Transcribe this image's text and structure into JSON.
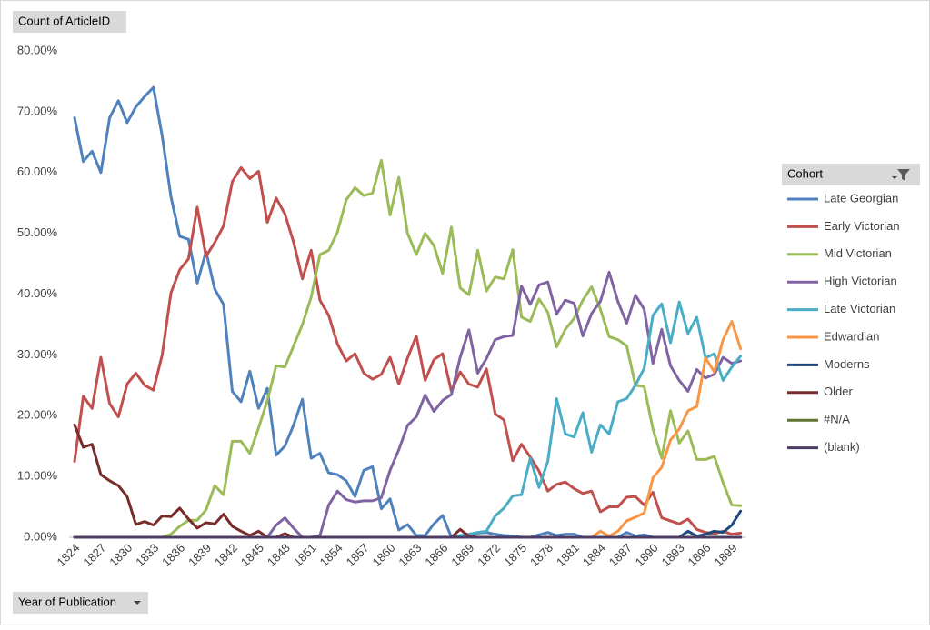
{
  "chart_data": {
    "type": "line",
    "value_field": "Count of ArticleID",
    "axis_field": "Year of Publication",
    "legend_title": "Cohort",
    "legend_position": "right",
    "grid": false,
    "categories": [
      "1824",
      null,
      null,
      "1827",
      null,
      null,
      "1830",
      null,
      null,
      "1833",
      null,
      null,
      "1836",
      null,
      null,
      "1839",
      null,
      null,
      "1842",
      null,
      null,
      "1845",
      null,
      null,
      "1848",
      null,
      null,
      "1851",
      null,
      null,
      "1854",
      null,
      null,
      "1857",
      null,
      null,
      "1860",
      null,
      null,
      "1863",
      null,
      null,
      "1866",
      null,
      null,
      "1869",
      null,
      null,
      "1872",
      null,
      null,
      "1875",
      null,
      null,
      "1878",
      null,
      null,
      "1881",
      null,
      null,
      "1884",
      null,
      null,
      "1887",
      null,
      null,
      "1890",
      null,
      null,
      "1893",
      null,
      null,
      "1896",
      null,
      null,
      "1899",
      null
    ],
    "ylim": [
      0,
      80
    ],
    "yticks": [
      {
        "value": 0,
        "label": "0.00%"
      },
      {
        "value": 10,
        "label": "10.00%"
      },
      {
        "value": 20,
        "label": "20.00%"
      },
      {
        "value": 30,
        "label": "30.00%"
      },
      {
        "value": 40,
        "label": "40.00%"
      },
      {
        "value": 50,
        "label": "50.00%"
      },
      {
        "value": 60,
        "label": "60.00%"
      },
      {
        "value": 70,
        "label": "70.00%"
      },
      {
        "value": 80,
        "label": "80.00%"
      }
    ],
    "series": [
      {
        "name": "Late Georgian",
        "color": "#4f81bd",
        "values": [
          69,
          61.8,
          63.5,
          60,
          69,
          71.8,
          68.2,
          70.8,
          72.5,
          74,
          66,
          56,
          49.5,
          49,
          41.8,
          47,
          40.8,
          38.3,
          24,
          22.3,
          27.3,
          21.2,
          24.5,
          13.5,
          15,
          18.5,
          22.7,
          13,
          13.8,
          10.6,
          10.3,
          9.3,
          6.7,
          11,
          11.6,
          4.7,
          6.3,
          1.2,
          2.1,
          0.3,
          0.3,
          2.2,
          3.6,
          0,
          0,
          0.5,
          0.7,
          0.8,
          0.5,
          0.3,
          0.2,
          0,
          0,
          0.4,
          0.8,
          0.3,
          0.5,
          0.5,
          0,
          0,
          0,
          0,
          0,
          0.8,
          0.2,
          0.4,
          0,
          0,
          0,
          0,
          0,
          0,
          0,
          0,
          0,
          0,
          0
        ]
      },
      {
        "name": "Early Victorian",
        "color": "#c0504d",
        "values": [
          12.5,
          23.2,
          21.2,
          29.6,
          22,
          19.8,
          25.2,
          27,
          25,
          24.2,
          30,
          40.2,
          44,
          45.8,
          54.3,
          46.2,
          48.5,
          51.2,
          58.5,
          60.8,
          59,
          60.2,
          51.8,
          55.8,
          53.2,
          48.5,
          42.5,
          47.2,
          39,
          36.5,
          31.8,
          29,
          30.2,
          27,
          26,
          26.8,
          29.6,
          25.2,
          29.5,
          33.1,
          25.8,
          29.2,
          30.2,
          24,
          27.2,
          25.2,
          24.7,
          27.7,
          20.3,
          19.3,
          12.6,
          15.3,
          13.2,
          10.9,
          7.6,
          8.7,
          9.1,
          8,
          7.2,
          7.6,
          4.2,
          5,
          5,
          6.6,
          6.7,
          5.3,
          7.4,
          3.2,
          2.7,
          2.2,
          3,
          1.3,
          0.8,
          0.6,
          1,
          0.5,
          0.7
        ]
      },
      {
        "name": "Mid Victorian",
        "color": "#9bbb59",
        "values": [
          0,
          0,
          0,
          0,
          0,
          0,
          0,
          0,
          0,
          0,
          0,
          0.5,
          1.8,
          2.8,
          2.8,
          4.5,
          8.5,
          7,
          15.8,
          15.8,
          13.8,
          18,
          22.5,
          28.2,
          28,
          31.5,
          35,
          39.5,
          46.5,
          47.2,
          50.2,
          55.5,
          57.5,
          56.2,
          56.6,
          62,
          53,
          59.2,
          50,
          46.5,
          50,
          48,
          43.4,
          51,
          41,
          39.9,
          47.2,
          40.5,
          42.8,
          42.5,
          47.3,
          36.2,
          35.5,
          39.2,
          37,
          31.3,
          34.2,
          36,
          39,
          41.2,
          37.5,
          33,
          32.5,
          31.5,
          25,
          24.8,
          17.8,
          13,
          20.8,
          15.5,
          17.5,
          12.8,
          12.8,
          13.3,
          9,
          5.3,
          5.2
        ]
      },
      {
        "name": "High Victorian",
        "color": "#8064a2",
        "values": [
          0,
          0,
          0,
          0,
          0,
          0,
          0,
          0,
          0,
          0,
          0,
          0,
          0,
          0,
          0,
          0,
          0,
          0,
          0,
          0,
          0,
          0,
          0,
          2,
          3.2,
          1.5,
          0,
          0,
          0.3,
          5.3,
          7.6,
          6.2,
          5.8,
          6,
          6,
          6.5,
          11,
          14.4,
          18.4,
          19.8,
          23.4,
          20.7,
          22.5,
          23.5,
          29.6,
          34.1,
          27,
          29.4,
          32.5,
          33,
          33.2,
          41.3,
          38.3,
          41.5,
          42,
          36.7,
          39,
          38.5,
          33.1,
          36.8,
          38.8,
          43.6,
          38.8,
          35.2,
          39.8,
          37.5,
          28.6,
          34.2,
          28.2,
          25.8,
          24,
          27.6,
          26.2,
          26.8,
          29.6,
          28.6,
          29
        ]
      },
      {
        "name": "Late Victorian",
        "color": "#4bacc6",
        "values": [
          0,
          0,
          0,
          0,
          0,
          0,
          0,
          0,
          0,
          0,
          0,
          0,
          0,
          0,
          0,
          0,
          0,
          0,
          0,
          0,
          0,
          0,
          0,
          0,
          0,
          0,
          0,
          0,
          0,
          0,
          0,
          0,
          0,
          0,
          0,
          0,
          0,
          0,
          0,
          0,
          0,
          0,
          0,
          0,
          0.3,
          0.5,
          0.8,
          1,
          3.5,
          4.8,
          6.8,
          7,
          13,
          8.2,
          12.5,
          22.8,
          17,
          16.5,
          20.5,
          14,
          18.5,
          17,
          22.3,
          22.8,
          25,
          27.8,
          36.5,
          38.4,
          32,
          38.7,
          33.5,
          36.2,
          29.5,
          30.2,
          25.8,
          28,
          29.8
        ]
      },
      {
        "name": "Edwardian",
        "color": "#f79646",
        "values": [
          0,
          0,
          0,
          0,
          0,
          0,
          0,
          0,
          0,
          0,
          0,
          0,
          0,
          0,
          0,
          0,
          0,
          0,
          0,
          0,
          0,
          0,
          0,
          0,
          0,
          0,
          0,
          0,
          0,
          0,
          0,
          0,
          0,
          0,
          0,
          0,
          0,
          0,
          0,
          0,
          0,
          0,
          0,
          0,
          0,
          0,
          0,
          0,
          0,
          0,
          0,
          0,
          0,
          0,
          0,
          0,
          0,
          0,
          0,
          0,
          1,
          0.2,
          1,
          2.7,
          3.3,
          4,
          9.8,
          11.5,
          16,
          17.8,
          20.8,
          21.5,
          29.5,
          27.2,
          32.5,
          35.5,
          31
        ]
      },
      {
        "name": "Moderns",
        "color": "#1f497d",
        "values": [
          0,
          0,
          0,
          0,
          0,
          0,
          0,
          0,
          0,
          0,
          0,
          0,
          0,
          0,
          0,
          0,
          0,
          0,
          0,
          0,
          0,
          0,
          0,
          0,
          0,
          0,
          0,
          0,
          0,
          0,
          0,
          0,
          0,
          0,
          0,
          0,
          0,
          0,
          0,
          0,
          0,
          0,
          0,
          0,
          0,
          0,
          0,
          0,
          0,
          0,
          0,
          0,
          0,
          0,
          0,
          0,
          0,
          0,
          0,
          0,
          0,
          0,
          0,
          0,
          0,
          0,
          0,
          0,
          0,
          0,
          1,
          0.2,
          0.5,
          1,
          0.8,
          2,
          4.3
        ]
      },
      {
        "name": "Older",
        "color": "#772c2a",
        "values": [
          18.5,
          14.8,
          15.3,
          10.3,
          9.3,
          8.5,
          6.7,
          2.1,
          2.6,
          2,
          3.5,
          3.4,
          4.8,
          3,
          1.5,
          2.4,
          2.2,
          3.8,
          1.8,
          1,
          0.3,
          1,
          0,
          0,
          0.6,
          0,
          0,
          0,
          0,
          0,
          0,
          0,
          0,
          0,
          0,
          0,
          0,
          0,
          0,
          0,
          0,
          0,
          0,
          0,
          1.3,
          0.2,
          0,
          0,
          0,
          0,
          0,
          0,
          0,
          0,
          0,
          0,
          0,
          0,
          0,
          0,
          0,
          0,
          0,
          0,
          0,
          0,
          0,
          0,
          0,
          0,
          0,
          0,
          0,
          0,
          0,
          0,
          0
        ]
      },
      {
        "name": "#N/A",
        "color": "#5f7530",
        "values": [
          0,
          0,
          0,
          0,
          0,
          0,
          0,
          0,
          0,
          0,
          0,
          0,
          0,
          0,
          0,
          0,
          0,
          0,
          0,
          0,
          0,
          0,
          0,
          0,
          0,
          0,
          0,
          0,
          0,
          0,
          0,
          0,
          0,
          0,
          0,
          0,
          0,
          0,
          0,
          0,
          0,
          0,
          0,
          0,
          0,
          0,
          0,
          0,
          0,
          0,
          0,
          0,
          0,
          0,
          0,
          0,
          0,
          0,
          0,
          0,
          0,
          0,
          0,
          0,
          0,
          0,
          0,
          0,
          0,
          0,
          0,
          0,
          0,
          0,
          0,
          0,
          0
        ]
      },
      {
        "name": "(blank)",
        "color": "#4d3b62",
        "values": [
          0,
          0,
          0,
          0,
          0,
          0,
          0,
          0,
          0,
          0,
          0,
          0,
          0,
          0,
          0,
          0,
          0,
          0,
          0,
          0,
          0,
          0,
          0,
          0,
          0,
          0,
          0,
          0,
          0,
          0,
          0,
          0,
          0,
          0,
          0,
          0,
          0,
          0,
          0,
          0,
          0,
          0,
          0,
          0,
          0,
          0,
          0,
          0,
          0,
          0,
          0,
          0,
          0,
          0,
          0,
          0,
          0,
          0,
          0,
          0,
          0,
          0,
          0,
          0,
          0,
          0,
          0,
          0,
          0,
          0,
          0,
          0,
          0,
          0,
          0,
          0,
          0
        ]
      }
    ]
  }
}
